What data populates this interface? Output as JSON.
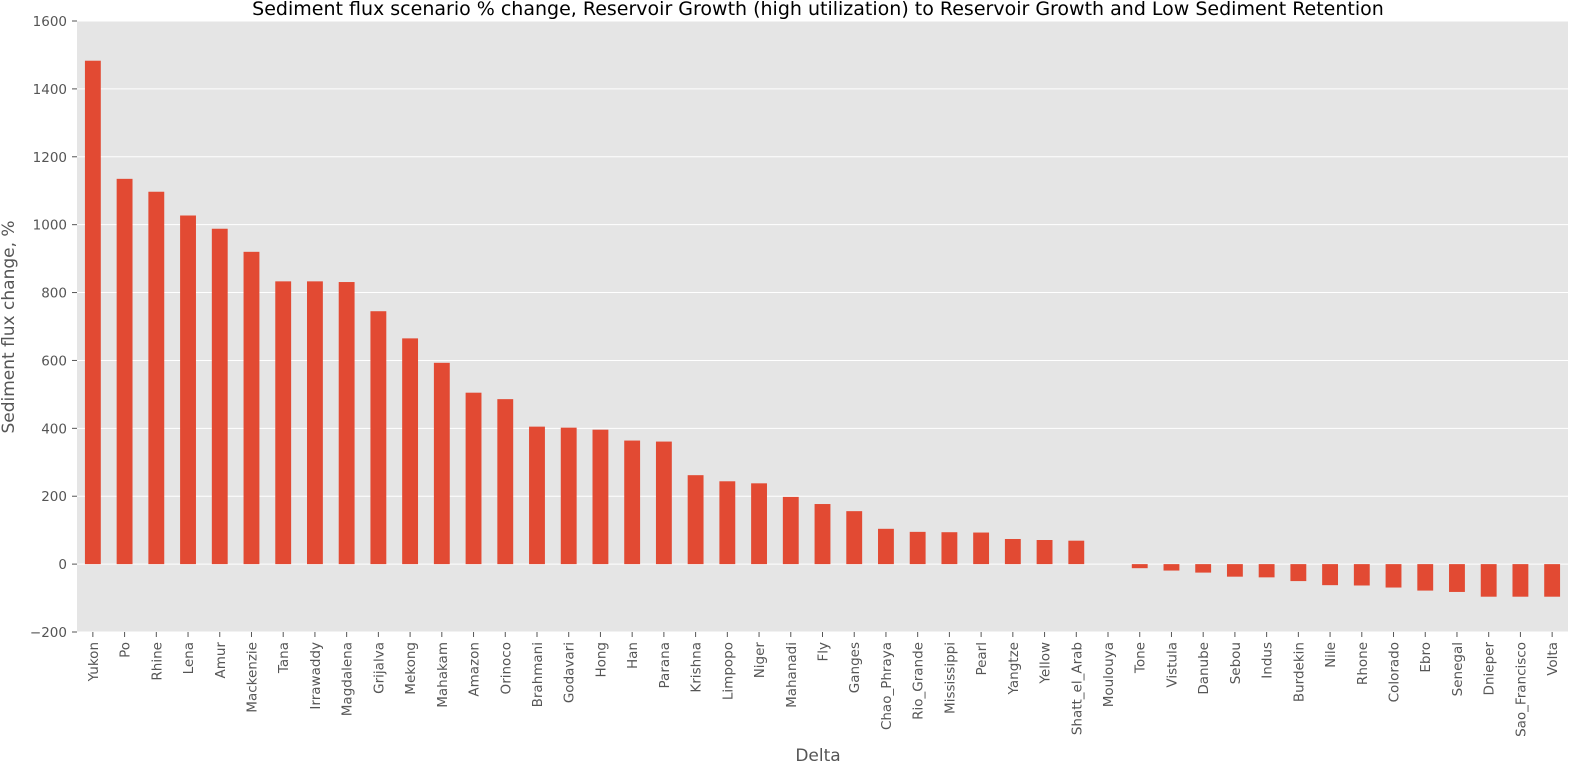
{
  "chart_data": {
    "type": "bar",
    "title": "Sediment flux scenario % change, Reservoir Growth (high utilization) to Reservoir Growth and Low Sediment Retention",
    "xlabel": "Delta",
    "ylabel": "Sediment flux change, %",
    "ylim": [
      -200,
      1600
    ],
    "yticks": [
      "−200",
      "0",
      "200",
      "400",
      "600",
      "800",
      "1000",
      "1200",
      "1400",
      "1600"
    ],
    "ytick_values": [
      -200,
      0,
      200,
      400,
      600,
      800,
      1000,
      1200,
      1400,
      1600
    ],
    "grid": true,
    "bar_color": "#e24a33",
    "background_color": "#e5e5e5",
    "categories": [
      "Yukon",
      "Po",
      "Rhine",
      "Lena",
      "Amur",
      "Mackenzie",
      "Tana",
      "Irrawaddy",
      "Magdalena",
      "Grijalva",
      "Mekong",
      "Mahakam",
      "Amazon",
      "Orinoco",
      "Brahmani",
      "Godavari",
      "Hong",
      "Han",
      "Parana",
      "Krishna",
      "Limpopo",
      "Niger",
      "Mahanadi",
      "Fly",
      "Ganges",
      "Chao_Phraya",
      "Rio_Grande",
      "Mississippi",
      "Pearl",
      "Yangtze",
      "Yellow",
      "Shatt_el_Arab",
      "Moulouya",
      "Tone",
      "Vistula",
      "Danube",
      "Sebou",
      "Indus",
      "Burdekin",
      "Nile",
      "Rhone",
      "Colorado",
      "Ebro",
      "Senegal",
      "Dnieper",
      "Sao_Francisco",
      "Volta"
    ],
    "values": [
      1483,
      1135,
      1097,
      1027,
      988,
      920,
      833,
      833,
      831,
      745,
      665,
      593,
      505,
      486,
      405,
      402,
      396,
      364,
      361,
      262,
      244,
      238,
      198,
      177,
      156,
      104,
      95,
      94,
      93,
      74,
      71,
      69,
      0,
      -12,
      -19,
      -25,
      -37,
      -39,
      -50,
      -62,
      -63,
      -69,
      -78,
      -82,
      -96,
      -96,
      -96
    ]
  }
}
